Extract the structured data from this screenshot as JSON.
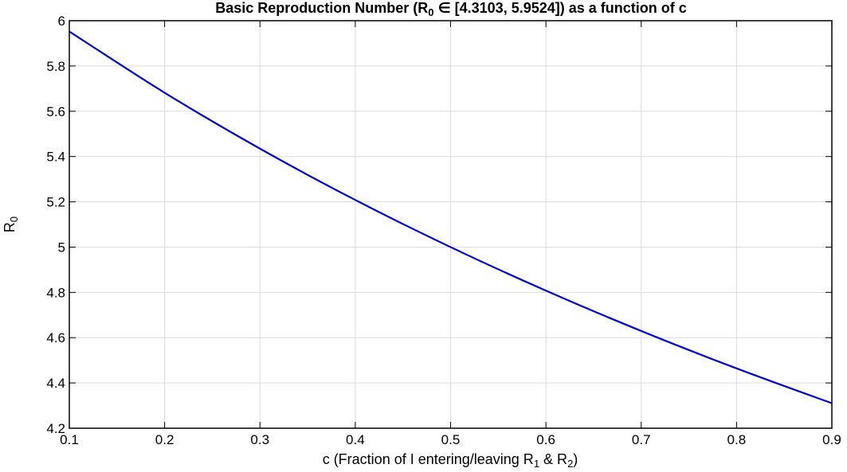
{
  "chart_data": {
    "type": "line",
    "title_parts": {
      "a": "Basic Reproduction Number (R",
      "a_sub": "0",
      "b": " ∈ [4.3103, 5.9524]) as a function of c"
    },
    "xlabel_parts": {
      "a": "c (Fraction of I entering/leaving R",
      "sub1": "1",
      "b": " & R",
      "sub2": "2",
      "c": ")"
    },
    "ylabel_parts": {
      "a": "R",
      "sub": "0"
    },
    "xlim": [
      0.1,
      0.9
    ],
    "ylim": [
      4.2,
      6
    ],
    "xticks": [
      0.1,
      0.2,
      0.3,
      0.4,
      0.5,
      0.6,
      0.7,
      0.8,
      0.9
    ],
    "xtick_labels": [
      "0.1",
      "0.2",
      "0.3",
      "0.4",
      "0.5",
      "0.6",
      "0.7",
      "0.8",
      "0.9"
    ],
    "yticks": [
      4.2,
      4.4,
      4.6,
      4.8,
      5,
      5.2,
      5.4,
      5.6,
      5.8,
      6
    ],
    "ytick_labels": [
      "4.2",
      "4.4",
      "4.6",
      "4.8",
      "5",
      "5.2",
      "5.4",
      "5.6",
      "5.8",
      "6"
    ],
    "grid": true,
    "series": [
      {
        "color": "#0000cc",
        "x": [
          0.1,
          0.2,
          0.3,
          0.4,
          0.5,
          0.6,
          0.7,
          0.8,
          0.9
        ],
        "y": [
          5.9524,
          5.6818,
          5.4348,
          5.2083,
          5.0,
          4.8077,
          4.6296,
          4.4643,
          4.3103
        ]
      }
    ]
  }
}
